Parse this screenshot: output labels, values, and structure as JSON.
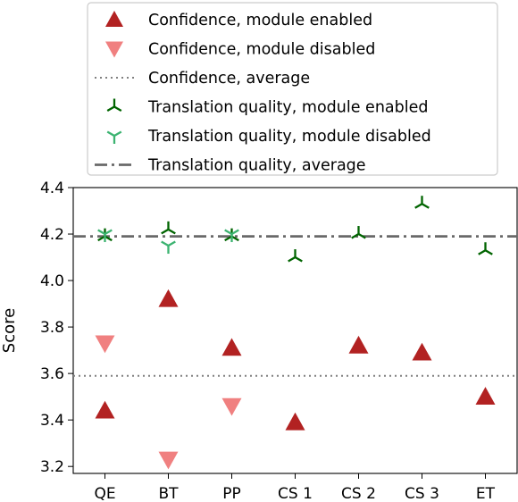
{
  "chart_data": {
    "type": "scatter",
    "ylabel": "Score",
    "xlabel": "",
    "categories": [
      "QE",
      "BT",
      "PP",
      "CS 1",
      "CS 2",
      "CS 3",
      "ET"
    ],
    "ylim": [
      3.17,
      4.4
    ],
    "yticks": [
      "3.2",
      "3.4",
      "3.6",
      "3.8",
      "4.0",
      "4.2",
      "4.4"
    ],
    "yticks_values": [
      3.2,
      3.4,
      3.6,
      3.8,
      4.0,
      4.2,
      4.4
    ],
    "grid": false,
    "legend_position": "top (above plot)",
    "series": [
      {
        "name": "Confidence, module enabled",
        "marker": "triangle-up",
        "color": "#b22222",
        "values": [
          3.44,
          3.92,
          3.71,
          3.39,
          3.72,
          3.69,
          3.5
        ]
      },
      {
        "name": "Confidence, module disabled",
        "marker": "triangle-down",
        "color": "#f08080",
        "values": [
          3.73,
          3.23,
          3.46,
          null,
          null,
          null,
          null
        ]
      },
      {
        "name": "Confidence, average",
        "line_style": "dotted",
        "color": "#808080",
        "constant": 3.59
      },
      {
        "name": "Translation quality, module enabled",
        "marker": "tri-up",
        "color": "#006400",
        "values": [
          4.19,
          4.22,
          4.19,
          4.1,
          4.2,
          4.33,
          4.13
        ]
      },
      {
        "name": "Translation quality, module disabled",
        "marker": "tri-down",
        "color": "#3cb371",
        "values": [
          4.2,
          4.15,
          4.2,
          null,
          null,
          null,
          null
        ]
      },
      {
        "name": "Translation quality, average",
        "line_style": "dashdot",
        "color": "#696969",
        "constant": 4.19
      }
    ]
  }
}
